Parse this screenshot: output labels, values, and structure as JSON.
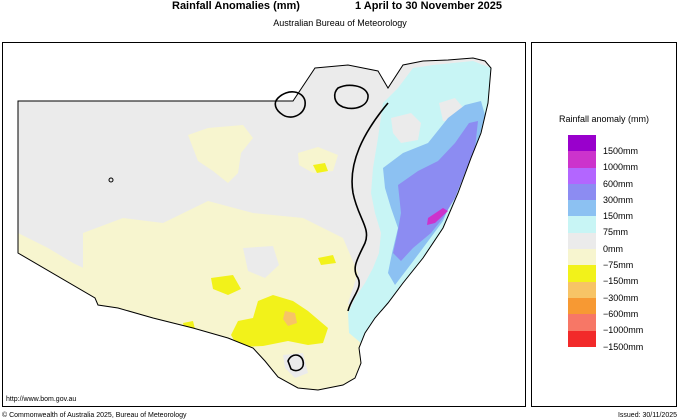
{
  "header": {
    "title": "Rainfall Anomalies (mm)",
    "period": "1 April to 30 November 2025",
    "subtitle": "Australian Bureau of Meteorology"
  },
  "legend": {
    "title": "Rainfall anomaly (mm)",
    "items": [
      {
        "label": "1500mm",
        "color": "#9900cc"
      },
      {
        "label": "1000mm",
        "color": "#cc33cc"
      },
      {
        "label": "600mm",
        "color": "#b366ff"
      },
      {
        "label": "300mm",
        "color": "#8c8cf2"
      },
      {
        "label": "150mm",
        "color": "#8cc1f2"
      },
      {
        "label": "75mm",
        "color": "#c8f5f5"
      },
      {
        "label": "0mm",
        "color": "#ebebeb"
      },
      {
        "label": "−75mm",
        "color": "#f7f5cf"
      },
      {
        "label": "−150mm",
        "color": "#f2f21a"
      },
      {
        "label": "−300mm",
        "color": "#f7c466"
      },
      {
        "label": "−600mm",
        "color": "#f79933"
      },
      {
        "label": "−1000mm",
        "color": "#f77766"
      },
      {
        "label": "−1500mm",
        "color": "#f22a2a"
      }
    ]
  },
  "map": {
    "website": "http://www.bom.gov.au",
    "region_fill": "#ebebeb",
    "below_fill": "#f7f5cf",
    "above_fill": "#c8f5f5"
  },
  "footer": {
    "copyright": "© Commonwealth of Australia 2025, Bureau of Meteorology",
    "issued": "Issued: 30/11/2025"
  }
}
